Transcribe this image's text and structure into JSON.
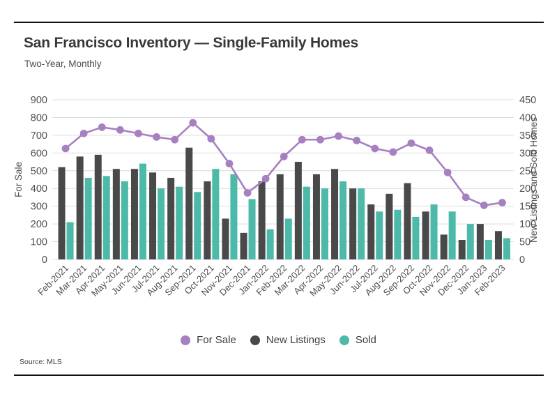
{
  "header": {
    "title": "San Francisco Inventory — Single-Family Homes",
    "subtitle": "Two-Year, Monthly"
  },
  "source": "Source: MLS",
  "colors": {
    "for_sale": "#a680c0",
    "new_listings": "#494949",
    "sold": "#4db9a8",
    "grid": "#dcdcdc",
    "rule": "#111111",
    "tick_text": "#4e4e4e"
  },
  "chart_data": {
    "type": "bar+line combo",
    "categories": [
      "Feb-2021",
      "Mar-2021",
      "Apr-2021",
      "May-2021",
      "Jun-2021",
      "Jul-2021",
      "Aug-2021",
      "Sep-2021",
      "Oct-2021",
      "Nov-2021",
      "Dec-2021",
      "Jan-2022",
      "Feb-2022",
      "Mar-2022",
      "Apr-2022",
      "May-2022",
      "Jun-2022",
      "Jul-2022",
      "Aug-2022",
      "Sep-2022",
      "Oct-2022",
      "Nov-2022",
      "Dec-2022",
      "Jan-2023",
      "Feb-2023"
    ],
    "series": [
      {
        "name": "For Sale",
        "type": "line",
        "axis": "left",
        "color": "#a680c0",
        "values": [
          625,
          710,
          745,
          730,
          710,
          690,
          675,
          770,
          680,
          540,
          375,
          455,
          580,
          675,
          675,
          695,
          670,
          625,
          605,
          655,
          615,
          490,
          350,
          305,
          320
        ]
      },
      {
        "name": "New Listings",
        "type": "bar",
        "axis": "right",
        "color": "#494949",
        "values": [
          260,
          290,
          295,
          255,
          255,
          245,
          230,
          315,
          220,
          115,
          75,
          220,
          240,
          275,
          240,
          255,
          200,
          155,
          185,
          215,
          135,
          70,
          55,
          100,
          80
        ]
      },
      {
        "name": "Sold",
        "type": "bar",
        "axis": "right",
        "color": "#4db9a8",
        "values": [
          105,
          230,
          235,
          220,
          270,
          200,
          205,
          190,
          255,
          240,
          170,
          85,
          115,
          205,
          200,
          220,
          200,
          135,
          140,
          120,
          155,
          135,
          100,
          55,
          60
        ]
      }
    ],
    "axes": {
      "left": {
        "label": "For Sale",
        "min": 0,
        "max": 900,
        "step": 100
      },
      "right": {
        "label": "New Listings and Sold Homes",
        "min": 0,
        "max": 450,
        "step": 50
      }
    },
    "grid": true,
    "legend_position": "bottom"
  }
}
